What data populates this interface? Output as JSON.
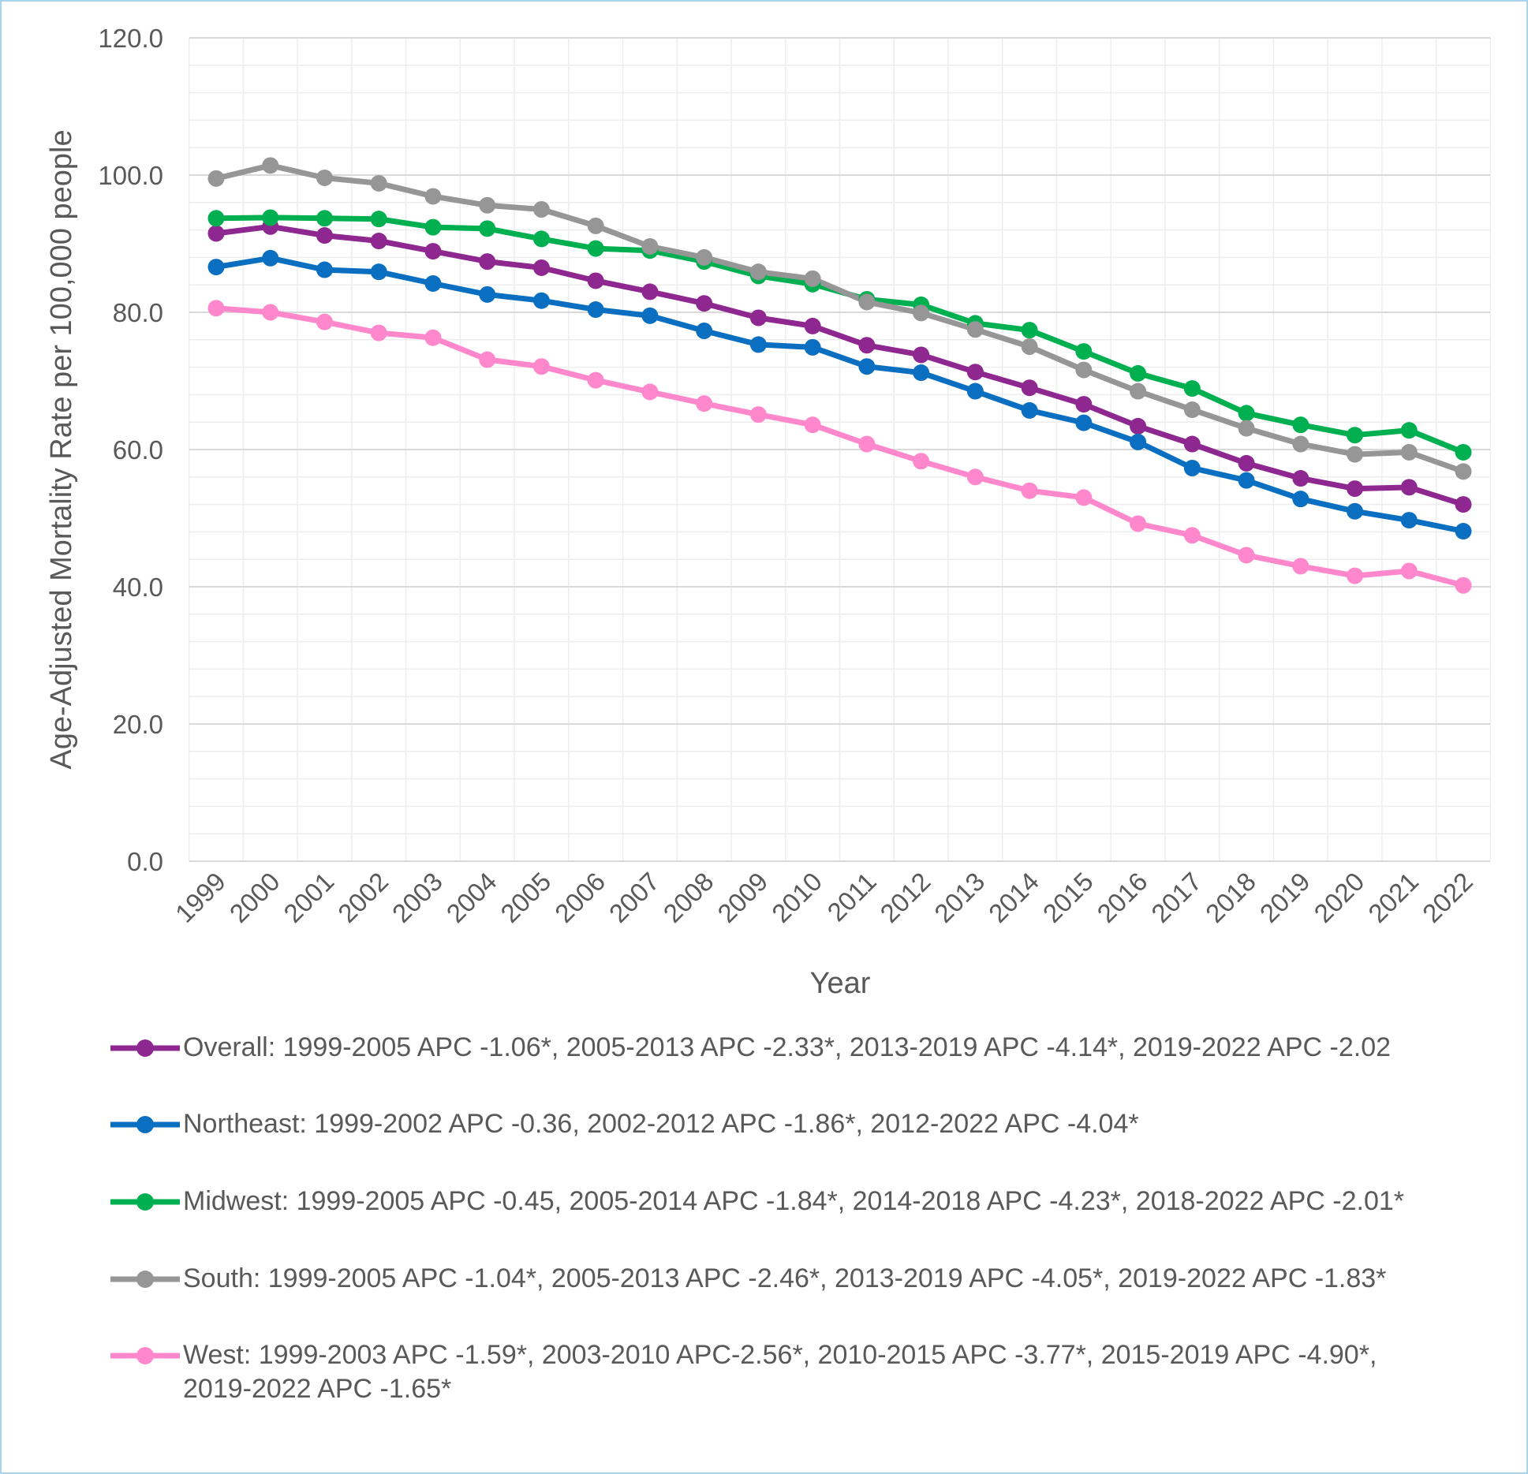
{
  "chart_data": {
    "type": "line",
    "title": "",
    "xlabel": "Year",
    "ylabel": "Age-Adjusted Mortality Rate per 100,000 people",
    "ylim": [
      0,
      120
    ],
    "yticks": [
      "0.0",
      "20.0",
      "40.0",
      "60.0",
      "80.0",
      "100.0",
      "120.0"
    ],
    "grid": true,
    "legend_position": "bottom",
    "x": [
      "1999",
      "2000",
      "2001",
      "2002",
      "2003",
      "2004",
      "2005",
      "2006",
      "2007",
      "2008",
      "2009",
      "2010",
      "2011",
      "2012",
      "2013",
      "2014",
      "2015",
      "2016",
      "2017",
      "2018",
      "2019",
      "2020",
      "2021",
      "2022"
    ],
    "series": [
      {
        "name": "Overall: 1999-2005 APC -1.06*, 2005-2013 APC -2.33*, 2013-2019 APC -4.14*, 2019-2022 APC -2.02",
        "color": "#8e278f",
        "values": [
          91.5,
          92.5,
          91.2,
          90.4,
          88.9,
          87.4,
          86.5,
          84.6,
          83.0,
          81.3,
          79.2,
          78.0,
          75.2,
          73.8,
          71.3,
          69.0,
          66.6,
          63.4,
          60.8,
          58.0,
          55.8,
          54.3,
          54.5,
          52.0
        ]
      },
      {
        "name": "Northeast: 1999-2002 APC -0.36, 2002-2012 APC -1.86*, 2012-2022 APC -4.04*",
        "color": "#0b6fc1",
        "values": [
          86.6,
          87.9,
          86.2,
          85.9,
          84.2,
          82.6,
          81.7,
          80.4,
          79.5,
          77.3,
          75.3,
          74.9,
          72.1,
          71.2,
          68.5,
          65.7,
          63.9,
          61.1,
          57.3,
          55.5,
          52.8,
          51.0,
          49.7,
          48.1
        ]
      },
      {
        "name": "Midwest: 1999-2005 APC -0.45, 2005-2014 APC -1.84*, 2014-2018 APC -4.23*, 2018-2022 APC -2.01*",
        "color": "#00b050",
        "values": [
          93.7,
          93.8,
          93.7,
          93.6,
          92.4,
          92.2,
          90.7,
          89.3,
          89.0,
          87.4,
          85.3,
          84.1,
          81.9,
          81.1,
          78.4,
          77.4,
          74.3,
          71.1,
          68.9,
          65.3,
          63.6,
          62.1,
          62.8,
          59.6
        ]
      },
      {
        "name": "South: 1999-2005 APC -1.04*, 2005-2013 APC -2.46*, 2013-2019 APC -4.05*, 2019-2022 APC -1.83*",
        "color": "#969696",
        "values": [
          99.5,
          101.4,
          99.6,
          98.8,
          96.9,
          95.6,
          95.0,
          92.6,
          89.6,
          88.0,
          85.9,
          84.9,
          81.5,
          79.9,
          77.5,
          75.0,
          71.6,
          68.5,
          65.8,
          63.1,
          60.8,
          59.3,
          59.6,
          56.8
        ]
      },
      {
        "name": "West: 1999-2003 APC -1.59*, 2003-2010 APC-2.56*, 2010-2015 APC -3.77*, 2015-2019 APC -4.90*, 2019-2022 APC -1.65*",
        "color": "#ff88cc",
        "values": [
          80.6,
          80.0,
          78.6,
          77.0,
          76.3,
          73.1,
          72.1,
          70.1,
          68.4,
          66.7,
          65.1,
          63.6,
          60.8,
          58.3,
          56.0,
          54.0,
          53.0,
          49.2,
          47.5,
          44.6,
          43.0,
          41.6,
          42.3,
          40.2
        ]
      }
    ]
  }
}
